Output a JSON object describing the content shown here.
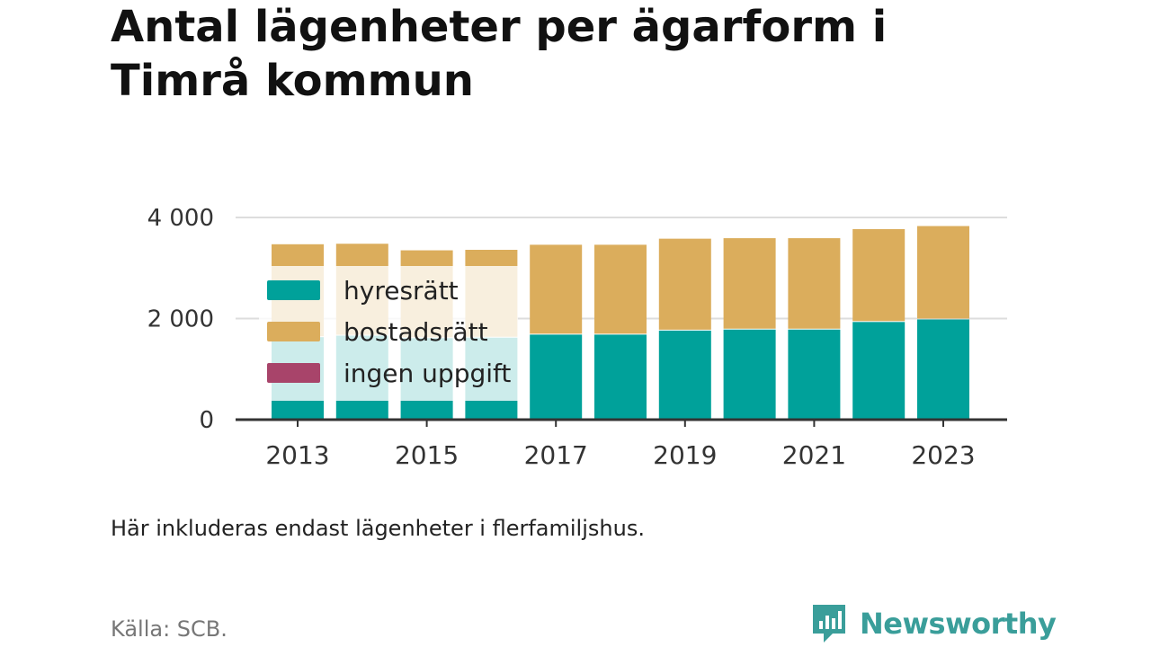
{
  "title": "Antal lägenheter per ägarform i Timrå kommun",
  "note": "Här inkluderas endast lägenheter i flerfamiljshus.",
  "source": "Källa: SCB.",
  "brand": "Newsworthy",
  "colors": {
    "hyresratt": "#00a19a",
    "bostadsratt": "#dbad5c",
    "ingen_uppgift": "#a8446a",
    "grid": "#dddddd",
    "axis": "#333333",
    "brand": "#3a9e9a"
  },
  "chart_data": {
    "type": "bar",
    "stacked": true,
    "categories": [
      "2013",
      "2014",
      "2015",
      "2016",
      "2017",
      "2018",
      "2019",
      "2020",
      "2021",
      "2022",
      "2023"
    ],
    "x_tick_labels": [
      "2013",
      "2015",
      "2017",
      "2019",
      "2021",
      "2023"
    ],
    "y_ticks": [
      0,
      2000,
      4000
    ],
    "y_tick_labels": [
      "0",
      "2 000",
      "4 000"
    ],
    "ylim": [
      0,
      4000
    ],
    "grid": true,
    "legend_position": "top-left",
    "series": [
      {
        "name": "hyresrätt",
        "color": "#00a19a",
        "values": [
          1650,
          1680,
          1630,
          1640,
          1700,
          1700,
          1780,
          1800,
          1800,
          1950,
          2000
        ]
      },
      {
        "name": "bostadsrätt",
        "color": "#dbad5c",
        "values": [
          1820,
          1800,
          1720,
          1720,
          1760,
          1760,
          1800,
          1790,
          1790,
          1820,
          1830
        ]
      },
      {
        "name": "ingen uppgift",
        "color": "#a8446a",
        "values": [
          0,
          0,
          0,
          0,
          0,
          0,
          0,
          0,
          0,
          0,
          0
        ]
      }
    ]
  }
}
